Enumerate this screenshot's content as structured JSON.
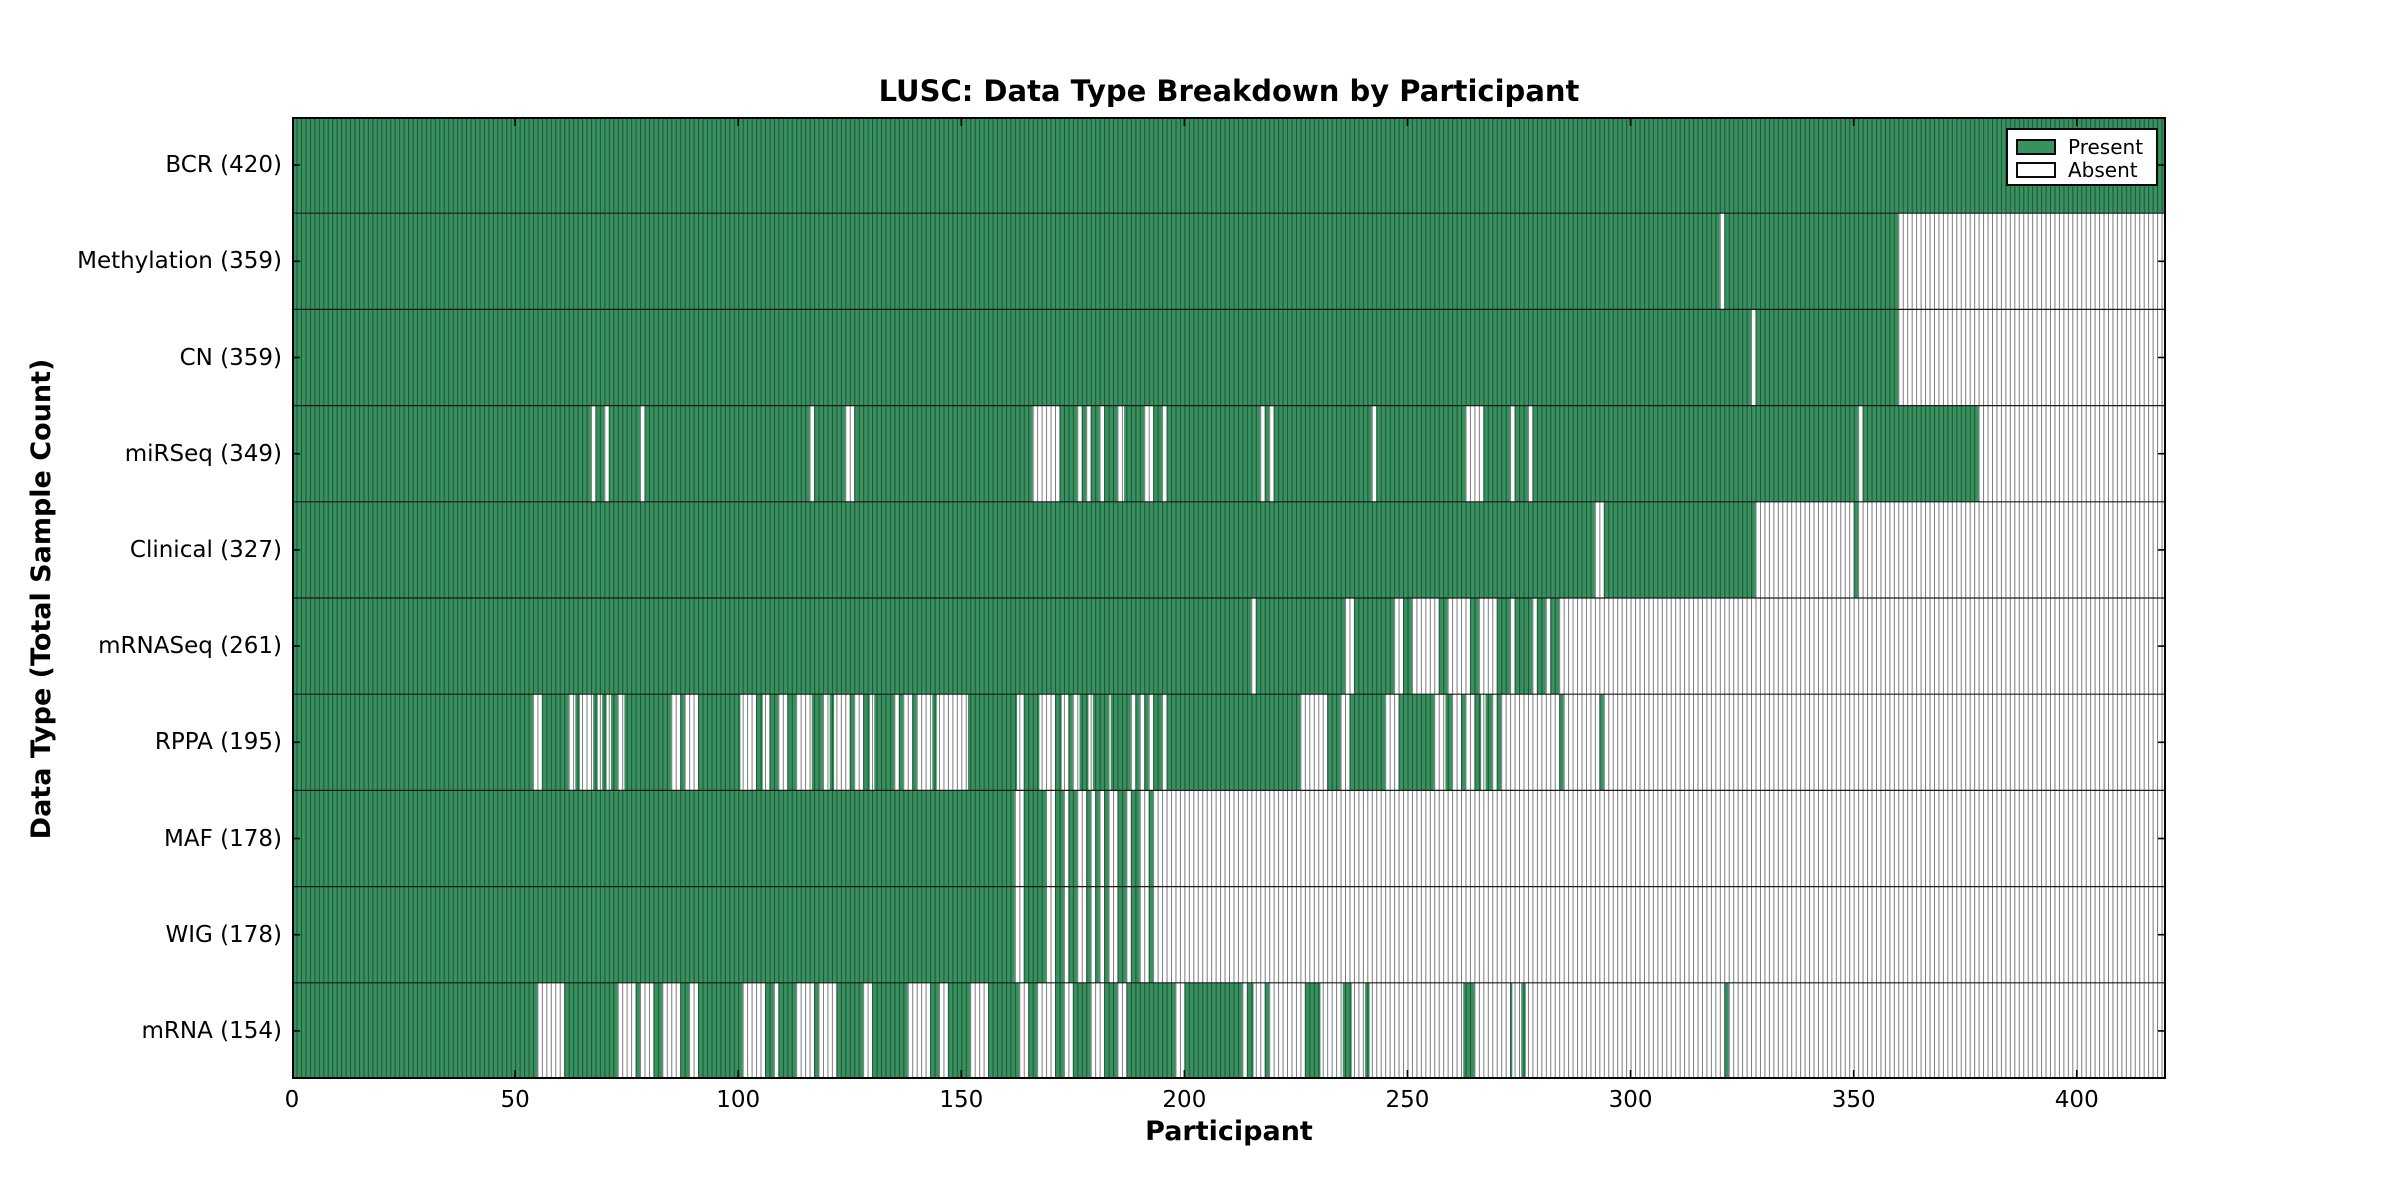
{
  "title": "LUSC: Data Type Breakdown by Participant",
  "x_axis": {
    "label": "Participant",
    "tick_values": [
      0,
      50,
      100,
      150,
      200,
      250,
      300,
      350,
      400
    ],
    "min": 0,
    "max": 420
  },
  "y_axis": {
    "label": "Data Type (Total Sample Count)"
  },
  "legend": {
    "present_label": "Present",
    "absent_label": "Absent"
  },
  "colors": {
    "present_fill": "#39915f",
    "present_edge": "#1e5839",
    "absent_fill": "#ffffff",
    "absent_edge": "#7d7d7d",
    "separator": "#1a1a1a",
    "border": "#000000"
  },
  "chart_data": {
    "type": "heatmap",
    "title": "LUSC: Data Type Breakdown by Participant",
    "xlabel": "Participant",
    "ylabel": "Data Type (Total Sample Count)",
    "x_range": [
      0,
      420
    ],
    "grid": false,
    "legend_position": "upper right",
    "legend_entries": [
      "Present",
      "Absent"
    ],
    "rows": [
      {
        "label": "BCR",
        "count": 420,
        "display": "BCR (420)",
        "present_segments": [
          [
            0,
            420
          ]
        ]
      },
      {
        "label": "Methylation",
        "count": 359,
        "display": "Methylation (359)",
        "present_segments": [
          [
            0,
            320
          ],
          [
            321,
            360
          ]
        ]
      },
      {
        "label": "CN",
        "count": 359,
        "display": "CN (359)",
        "present_segments": [
          [
            0,
            327
          ],
          [
            328,
            360
          ]
        ]
      },
      {
        "label": "miRSeq",
        "count": 349,
        "display": "miRSeq (349)",
        "present_segments": [
          [
            0,
            67
          ],
          [
            68,
            70
          ],
          [
            71,
            78
          ],
          [
            79,
            116
          ],
          [
            117,
            124
          ],
          [
            126,
            166
          ],
          [
            172,
            176
          ],
          [
            177,
            178
          ],
          [
            179,
            181
          ],
          [
            182,
            185
          ],
          [
            186.5,
            191
          ],
          [
            193,
            195
          ],
          [
            196,
            217
          ],
          [
            218,
            219
          ],
          [
            220,
            242
          ],
          [
            243,
            263
          ],
          [
            267,
            273
          ],
          [
            274,
            277
          ],
          [
            278,
            351
          ],
          [
            352,
            378
          ]
        ]
      },
      {
        "label": "Clinical",
        "count": 327,
        "display": "Clinical (327)",
        "present_segments": [
          [
            0,
            292
          ],
          [
            294,
            328
          ],
          [
            350,
            351
          ]
        ]
      },
      {
        "label": "mRNASeq",
        "count": 261,
        "display": "mRNASeq (261)",
        "present_segments": [
          [
            0,
            215
          ],
          [
            216,
            236
          ],
          [
            238,
            247
          ],
          [
            249,
            251
          ],
          [
            257,
            259
          ],
          [
            264,
            266
          ],
          [
            270,
            273
          ],
          [
            274,
            278
          ],
          [
            279,
            281
          ],
          [
            282,
            284
          ]
        ]
      },
      {
        "label": "RPPA",
        "count": 195,
        "display": "RPPA (195)",
        "present_segments": [
          [
            0,
            54
          ],
          [
            56,
            62
          ],
          [
            63.5,
            64.5
          ],
          [
            67.5,
            68.5
          ],
          [
            69.5,
            70.5
          ],
          [
            71.5,
            73
          ],
          [
            74.5,
            85
          ],
          [
            87,
            88
          ],
          [
            91,
            100.5
          ],
          [
            104,
            105.5
          ],
          [
            107,
            109
          ],
          [
            111,
            113
          ],
          [
            116.5,
            119
          ],
          [
            120.5,
            121.5
          ],
          [
            125,
            126
          ],
          [
            128,
            129.5
          ],
          [
            130.5,
            135
          ],
          [
            136,
            137
          ],
          [
            139,
            140
          ],
          [
            143.5,
            144.5
          ],
          [
            151.5,
            162.5
          ],
          [
            164,
            167.5
          ],
          [
            171,
            172.5
          ],
          [
            174,
            175
          ],
          [
            176.5,
            178.5
          ],
          [
            179.5,
            183
          ],
          [
            183.5,
            188
          ],
          [
            189,
            190
          ],
          [
            191,
            192
          ],
          [
            193,
            195
          ],
          [
            196,
            226
          ],
          [
            232,
            235
          ],
          [
            237,
            245
          ],
          [
            248,
            256
          ],
          [
            258.5,
            260
          ],
          [
            262,
            263
          ],
          [
            265,
            266.5
          ],
          [
            267.5,
            269
          ],
          [
            270,
            271
          ],
          [
            284,
            285
          ],
          [
            293,
            294
          ]
        ]
      },
      {
        "label": "MAF",
        "count": 178,
        "display": "MAF (178)",
        "present_segments": [
          [
            0,
            162
          ],
          [
            164,
            169
          ],
          [
            171,
            173
          ],
          [
            174,
            176
          ],
          [
            178,
            179
          ],
          [
            180,
            181
          ],
          [
            182,
            183
          ],
          [
            185,
            187
          ],
          [
            188,
            190
          ],
          [
            192,
            193
          ]
        ]
      },
      {
        "label": "WIG",
        "count": 178,
        "display": "WIG (178)",
        "present_segments": [
          [
            0,
            162
          ],
          [
            164,
            169
          ],
          [
            171,
            173
          ],
          [
            174,
            176
          ],
          [
            178,
            179
          ],
          [
            180,
            181
          ],
          [
            182,
            183
          ],
          [
            185,
            187
          ],
          [
            188,
            190
          ],
          [
            192,
            193
          ]
        ]
      },
      {
        "label": "mRNA",
        "count": 154,
        "display": "mRNA (154)",
        "present_segments": [
          [
            0,
            55
          ],
          [
            61,
            73
          ],
          [
            77,
            78
          ],
          [
            81,
            83
          ],
          [
            87,
            89
          ],
          [
            91,
            101
          ],
          [
            106,
            108
          ],
          [
            109,
            113
          ],
          [
            117,
            118
          ],
          [
            122,
            128
          ],
          [
            130,
            138
          ],
          [
            143,
            145
          ],
          [
            147,
            152
          ],
          [
            156,
            163
          ],
          [
            165,
            167
          ],
          [
            171,
            173
          ],
          [
            175,
            179
          ],
          [
            182,
            185
          ],
          [
            187,
            198
          ],
          [
            200,
            213
          ],
          [
            214,
            215.5
          ],
          [
            218,
            219
          ],
          [
            227,
            230.5
          ],
          [
            235.5,
            237.5
          ],
          [
            240.5,
            241.5
          ],
          [
            262.5,
            265
          ],
          [
            273,
            273.5
          ],
          [
            275.5,
            276.5
          ],
          [
            321,
            322
          ]
        ]
      }
    ]
  }
}
